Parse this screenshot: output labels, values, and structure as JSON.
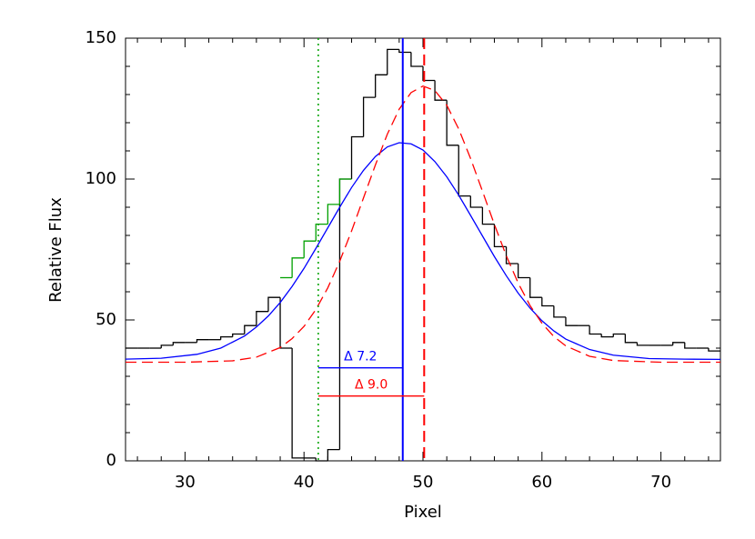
{
  "chart_data": {
    "type": "line",
    "xlabel": "Pixel",
    "ylabel": "Relative Flux",
    "xlim": [
      25,
      75
    ],
    "ylim": [
      0,
      150
    ],
    "xticks": [
      30,
      40,
      50,
      60,
      70
    ],
    "yticks": [
      0,
      50,
      100,
      150
    ],
    "xminorticks": [
      26,
      28,
      32,
      34,
      36,
      38,
      42,
      44,
      46,
      48,
      52,
      54,
      56,
      58,
      62,
      64,
      66,
      68,
      72,
      74
    ],
    "yminorticks": [
      10,
      20,
      30,
      40,
      60,
      70,
      80,
      90,
      110,
      120,
      130,
      140
    ],
    "series": [
      {
        "type": "step",
        "color": "#000000",
        "bins": [
          25,
          26,
          27,
          28,
          29,
          30,
          31,
          32,
          33,
          34,
          35,
          36,
          37,
          38,
          39,
          40,
          41,
          42,
          43,
          44,
          45,
          46,
          47,
          48,
          49,
          50,
          51,
          52,
          53,
          54,
          55,
          56,
          57,
          58,
          59,
          60,
          61,
          62,
          63,
          64,
          65,
          66,
          67,
          68,
          69,
          70,
          71,
          72,
          73,
          74,
          75
        ],
        "counts": [
          40,
          40,
          40,
          41,
          42,
          42,
          43,
          43,
          44,
          45,
          48,
          53,
          58,
          40,
          1,
          1,
          0,
          4,
          100,
          115,
          129,
          137,
          146,
          145,
          140,
          135,
          128,
          112,
          94,
          90,
          84,
          76,
          70,
          65,
          58,
          55,
          51,
          48,
          48,
          45,
          44,
          45,
          42,
          41,
          41,
          41,
          42,
          40,
          40,
          39
        ]
      },
      {
        "type": "step",
        "color": "#00a000",
        "bins": [
          38,
          39,
          40,
          41,
          42,
          43,
          44
        ],
        "counts": [
          65,
          72,
          78,
          84,
          91,
          100
        ]
      },
      {
        "type": "curve",
        "color": "#0000ff",
        "style": "solid",
        "x": [
          25,
          28,
          31,
          33,
          35,
          36,
          37,
          38,
          39,
          40,
          41,
          42,
          43,
          44,
          45,
          46,
          47,
          48,
          49,
          50,
          51,
          52,
          53,
          54,
          55,
          56,
          57,
          58,
          59,
          60,
          61,
          62,
          64,
          66,
          69,
          72,
          75
        ],
        "values": [
          36.1,
          36.4,
          37.8,
          40.0,
          44.3,
          47.5,
          51.4,
          56.2,
          61.9,
          68.3,
          75.4,
          82.7,
          90.0,
          97.0,
          103.1,
          108.0,
          111.4,
          112.9,
          112.5,
          110.3,
          106.2,
          100.8,
          94.3,
          87.1,
          79.8,
          72.5,
          65.7,
          59.5,
          54.2,
          49.7,
          46.1,
          43.2,
          39.5,
          37.5,
          36.3,
          36.1,
          36.0
        ]
      },
      {
        "type": "curve",
        "color": "#ff0000",
        "style": "dashed",
        "x": [
          25,
          30,
          34,
          36,
          38,
          39,
          40,
          41,
          42,
          43,
          44,
          45,
          46,
          47,
          48,
          49,
          50,
          51,
          52,
          53,
          54,
          55,
          56,
          57,
          58,
          59,
          60,
          61,
          62,
          64,
          66,
          70,
          75
        ],
        "values": [
          35.0,
          35.0,
          35.5,
          36.8,
          40.2,
          43.4,
          47.7,
          53.7,
          61.4,
          70.8,
          81.6,
          93.3,
          105.0,
          115.9,
          124.8,
          130.7,
          133.0,
          131.4,
          126.2,
          117.8,
          107.3,
          95.7,
          83.9,
          72.8,
          63.1,
          55.1,
          48.8,
          44.1,
          40.8,
          37.1,
          35.6,
          35.0,
          35.0
        ]
      }
    ],
    "vlines": [
      {
        "x": 41.2,
        "color": "#00a000",
        "style": "dotted"
      },
      {
        "x": 48.3,
        "color": "#0000ff",
        "style": "solid"
      },
      {
        "x": 50.1,
        "color": "#ff0000",
        "style": "dashed"
      }
    ],
    "intervals": [
      {
        "x": [
          41.2,
          48.3
        ],
        "y": 33,
        "label": "Δ 7.2",
        "color": "#0000ff"
      },
      {
        "x": [
          41.2,
          50.1
        ],
        "y": 23,
        "label": "Δ 9.0",
        "color": "#ff0000"
      }
    ]
  }
}
